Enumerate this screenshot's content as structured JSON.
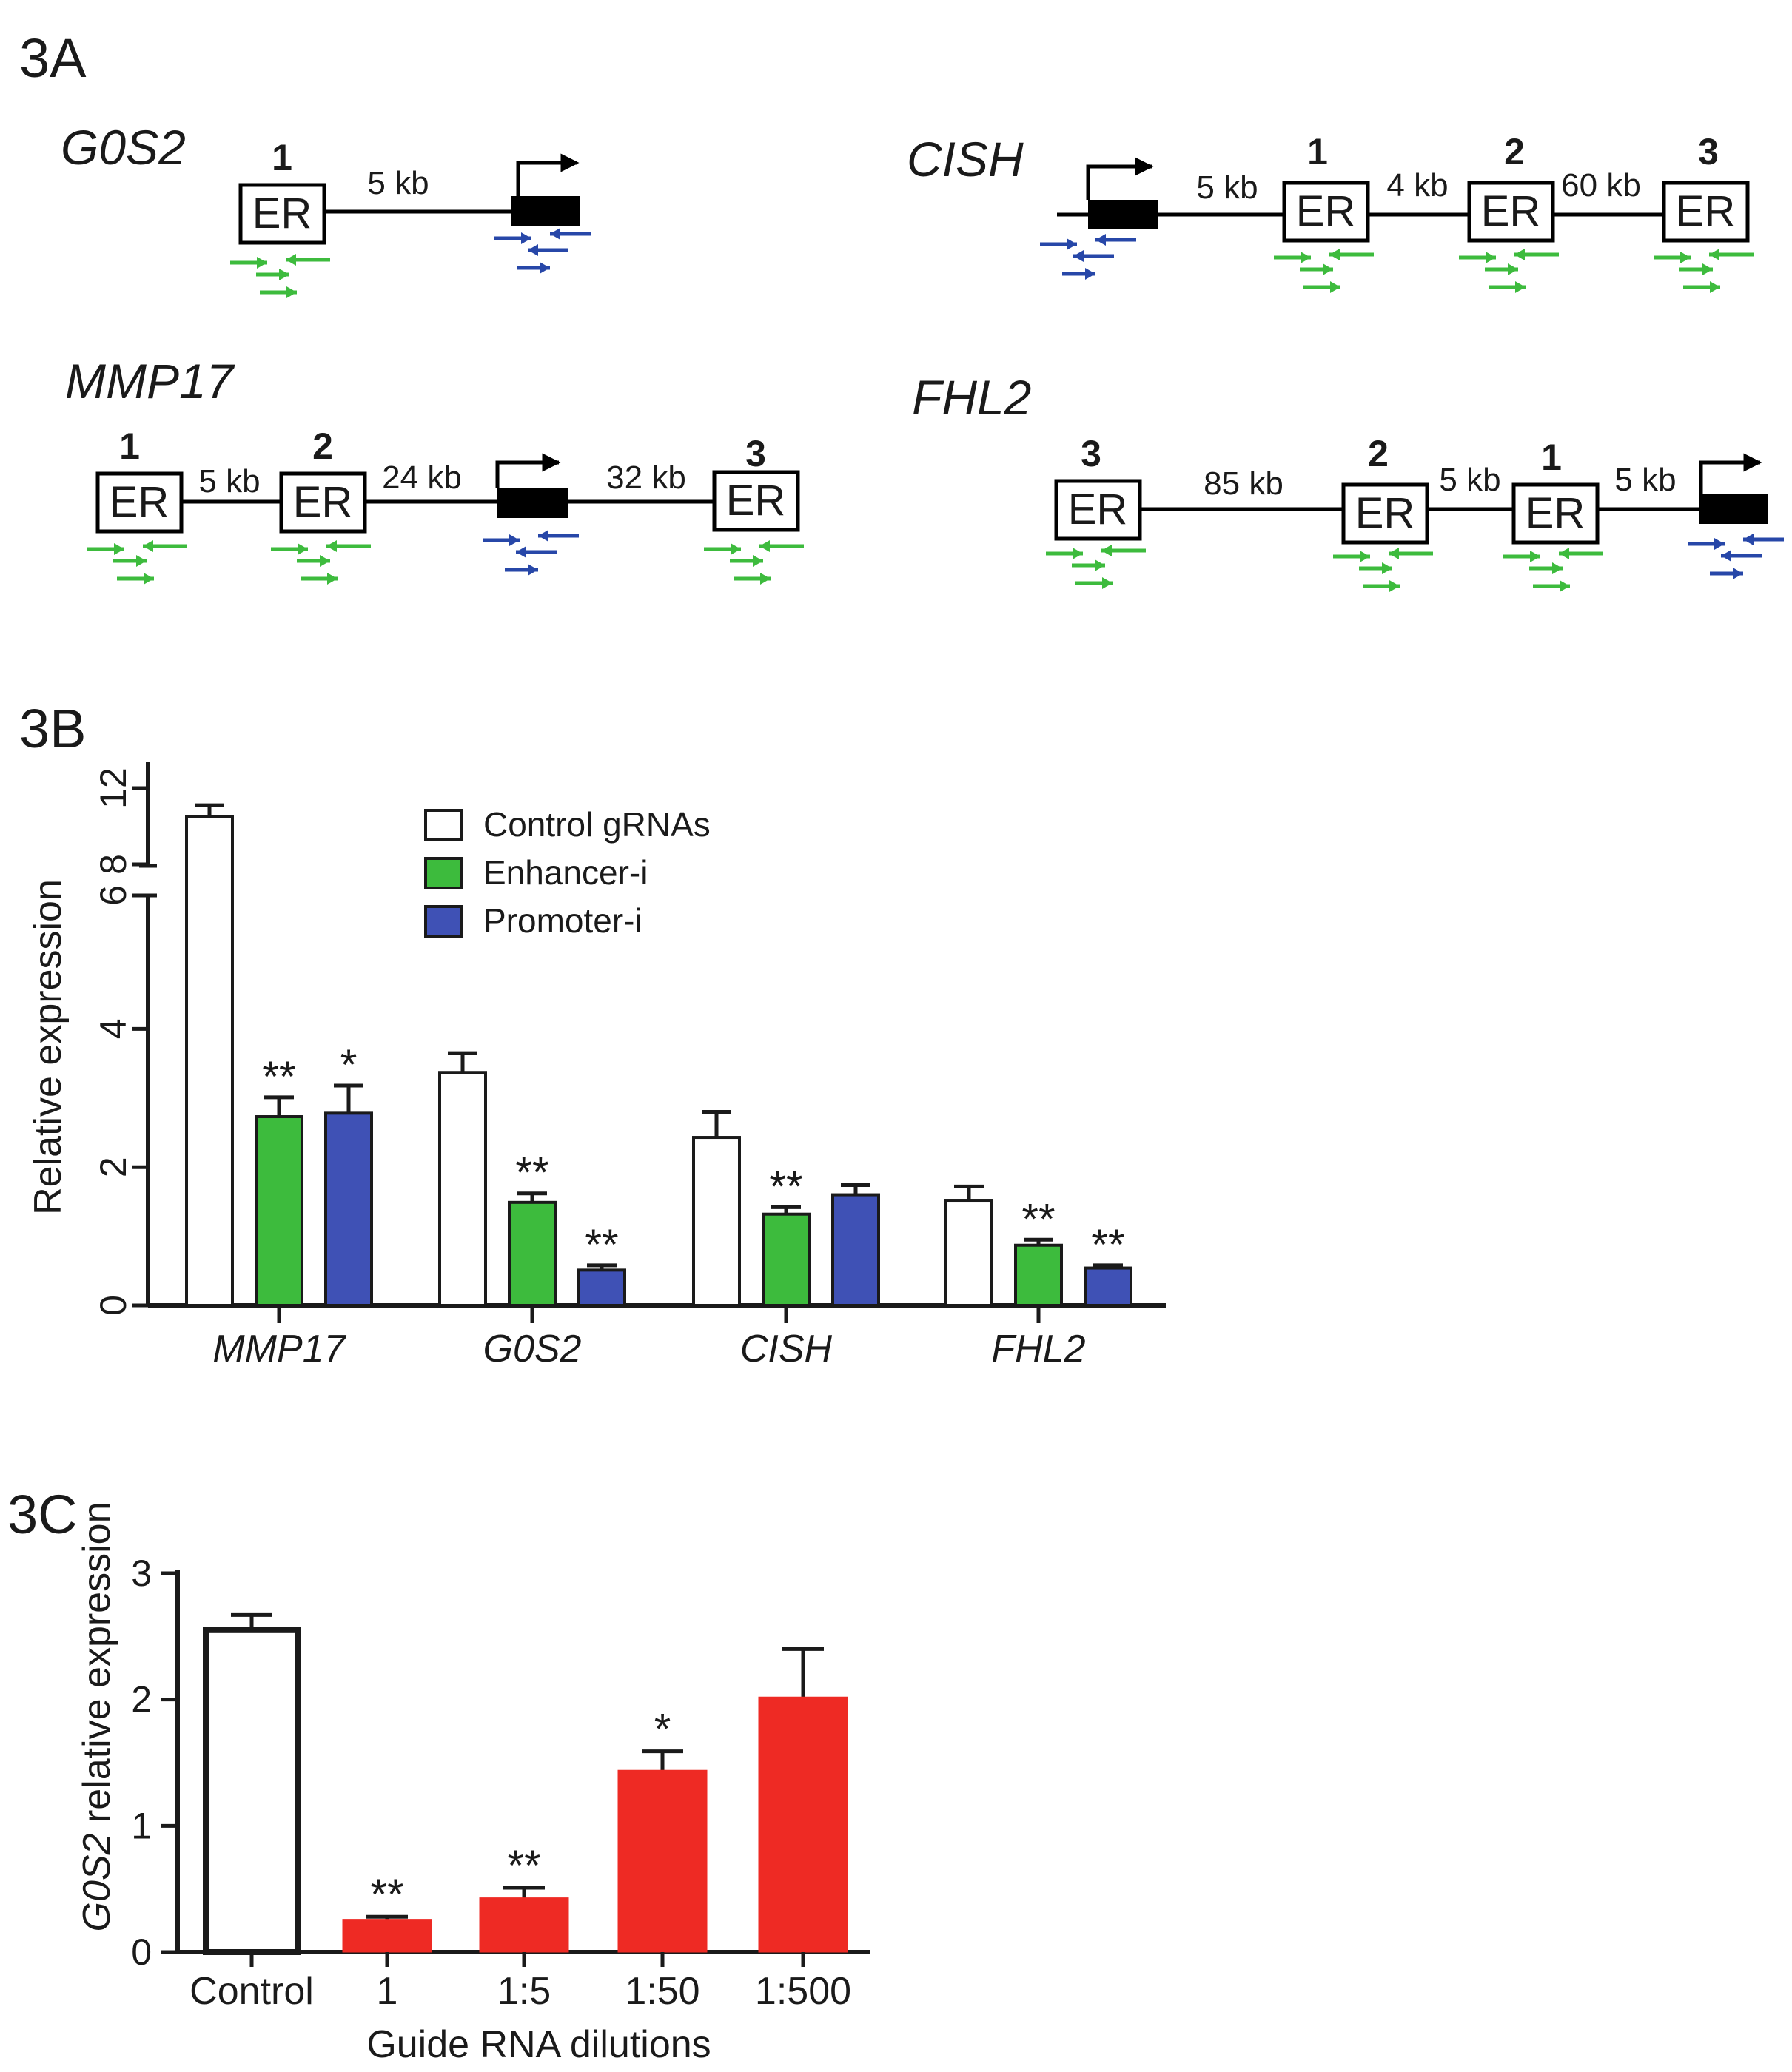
{
  "panels": {
    "a": "3A",
    "b": "3B",
    "c": "3C"
  },
  "colors": {
    "control": "#ffffff",
    "enhancer": "#3dbb3d",
    "promoter": "#3f51b5",
    "dilution": "#ee2a24",
    "axis": "#1a1a1a",
    "primer_green": "#3dbb3d",
    "primer_blue": "#2747a8"
  },
  "diagram": {
    "box_label": "ER",
    "genes": {
      "g0s2": {
        "name": "G0S2",
        "enhancers": [
          "1"
        ],
        "distances": [
          "5 kb"
        ]
      },
      "cish": {
        "name": "CISH",
        "enhancers": [
          "1",
          "2",
          "3"
        ],
        "distances": [
          "5 kb",
          "4 kb",
          "60 kb"
        ]
      },
      "mmp17": {
        "name": "MMP17",
        "enhancers": [
          "1",
          "2",
          "3"
        ],
        "distances": [
          "5 kb",
          "24 kb",
          "32 kb"
        ]
      },
      "fhl2": {
        "name": "FHL2",
        "enhancers": [
          "3",
          "2",
          "1"
        ],
        "distances": [
          "85 kb",
          "5 kb",
          "5 kb"
        ]
      }
    }
  },
  "chart_data": [
    {
      "type": "bar",
      "panel": "3B",
      "ylabel": "Relative expression",
      "yticks": [
        "0",
        "2",
        "4",
        "6",
        "8",
        "12"
      ],
      "axis_break": true,
      "categories": [
        "MMP17",
        "G0S2",
        "CISH",
        "FHL2"
      ],
      "legend_position": "top-center",
      "series": [
        {
          "name": "Control gRNAs",
          "values": [
            10.5,
            3.37,
            2.43,
            1.52
          ],
          "errors": [
            0.6,
            0.28,
            0.37,
            0.2
          ],
          "stars": [
            "",
            "",
            "",
            ""
          ]
        },
        {
          "name": "Enhancer-i",
          "values": [
            2.73,
            1.49,
            1.32,
            0.87
          ],
          "errors": [
            0.28,
            0.13,
            0.1,
            0.08
          ],
          "stars": [
            "**",
            "**",
            "**",
            "**"
          ]
        },
        {
          "name": "Promoter-i",
          "values": [
            2.78,
            0.51,
            1.6,
            0.54
          ],
          "errors": [
            0.4,
            0.07,
            0.14,
            0.04
          ],
          "stars": [
            "*",
            "**",
            "",
            "**"
          ]
        }
      ]
    },
    {
      "type": "bar",
      "panel": "3C",
      "ylabel_gene": "G0S2",
      "ylabel_rest": " relative expression",
      "xlabel": "Guide RNA dilutions",
      "yticks": [
        "0",
        "1",
        "2",
        "3"
      ],
      "ylim": [
        0,
        3
      ],
      "categories": [
        "Control",
        "1",
        "1:5",
        "1:50",
        "1:500"
      ],
      "values": [
        2.55,
        0.26,
        0.43,
        1.44,
        2.02
      ],
      "errors": [
        0.12,
        0.02,
        0.08,
        0.15,
        0.38
      ],
      "stars": [
        "",
        "**",
        "**",
        "*",
        ""
      ]
    }
  ]
}
